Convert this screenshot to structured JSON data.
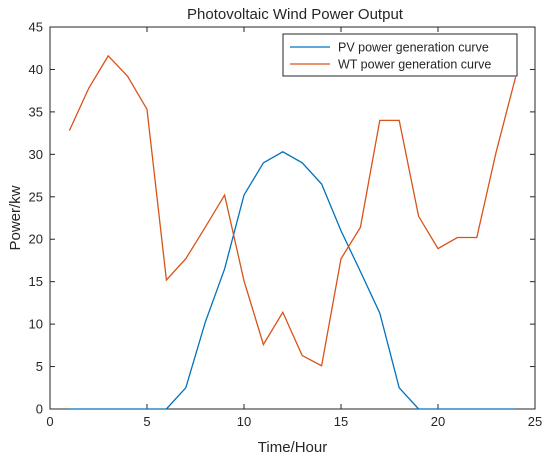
{
  "chart_data": {
    "type": "line",
    "title": "Photovoltaic Wind Power Output",
    "xlabel": "Time/Hour",
    "ylabel": "Power/kw",
    "xlim": [
      0,
      25
    ],
    "ylim": [
      0,
      45
    ],
    "xticks": [
      0,
      5,
      10,
      15,
      20,
      25
    ],
    "yticks": [
      0,
      5,
      10,
      15,
      20,
      25,
      30,
      35,
      40,
      45
    ],
    "grid": false,
    "legend_position": "top-right",
    "x": [
      1,
      2,
      3,
      4,
      5,
      6,
      7,
      8,
      9,
      10,
      11,
      12,
      13,
      14,
      15,
      16,
      17,
      18,
      19,
      20,
      21,
      22,
      23,
      24
    ],
    "series": [
      {
        "name": "PV power generation curve",
        "color": "#0072BD",
        "values": [
          0,
          0,
          0,
          0,
          0,
          0,
          2.5,
          10.2,
          16.5,
          25.2,
          29.0,
          30.3,
          29.0,
          26.5,
          21.0,
          16.2,
          11.3,
          2.5,
          0,
          0,
          0,
          0,
          0,
          0
        ]
      },
      {
        "name": "WT power generation curve",
        "color": "#D95319",
        "values": [
          32.8,
          37.8,
          41.6,
          39.2,
          35.3,
          15.2,
          17.7,
          21.4,
          25.2,
          15.1,
          7.6,
          11.4,
          6.3,
          5.1,
          17.7,
          21.4,
          34.0,
          34.0,
          22.7,
          18.9,
          20.2,
          20.2,
          30.3,
          39.1
        ]
      }
    ]
  }
}
